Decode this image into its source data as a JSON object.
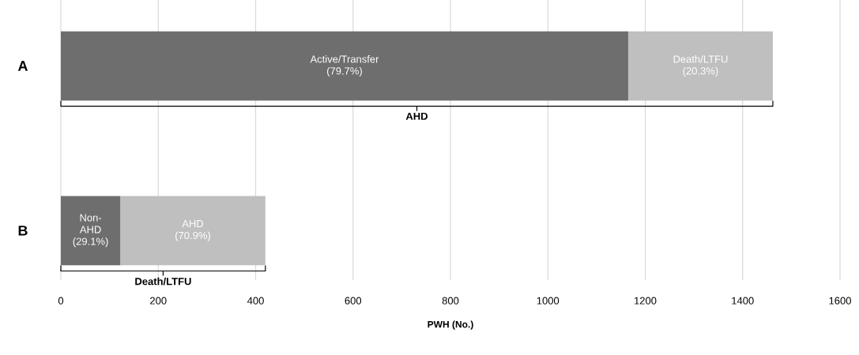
{
  "chart_data": {
    "type": "bar",
    "orientation": "horizontal",
    "stacked": true,
    "categories": [
      "A",
      "B"
    ],
    "xlabel": "PWH (No.)",
    "xlim": [
      0,
      1600
    ],
    "xticks": [
      0,
      200,
      400,
      600,
      800,
      1000,
      1200,
      1400,
      1600
    ],
    "grid": "x",
    "series": [
      {
        "color": "#6e6e6e",
        "values": [
          1165,
          122
        ]
      },
      {
        "color": "#bfbfbf",
        "values": [
          297,
          298
        ]
      }
    ],
    "annotations": [
      "Active/Transfer (79.7%)",
      "Death/LTFU (20.3%)",
      "Non-AHD (29.1%)",
      "AHD (70.9%)",
      "AHD",
      "Death/LTFU"
    ]
  }
}
